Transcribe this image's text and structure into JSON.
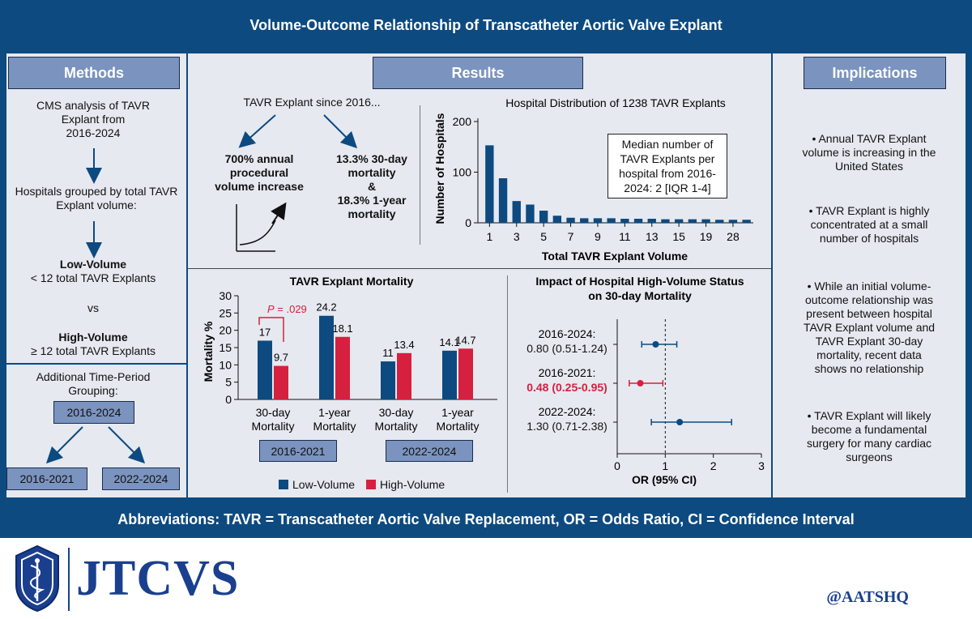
{
  "title": "Volume-Outcome Relationship of Transcatheter Aortic Valve Explant",
  "methods": {
    "heading": "Methods",
    "line1": "CMS analysis of TAVR",
    "line2": "Explant from",
    "line3": "2016-2024",
    "group1": "Hospitals grouped by total TAVR",
    "group2": "Explant volume:",
    "low_title": "Low-Volume",
    "low_desc": "< 12 total TAVR Explants",
    "vs": "vs",
    "high_title": "High-Volume",
    "high_desc": "≥ 12 total TAVR Explants",
    "period1": "Additional Time-Period",
    "period2": "Grouping:",
    "box_all": "2016-2024",
    "box_early": "2016-2021",
    "box_late": "2022-2024"
  },
  "results": {
    "heading": "Results",
    "since": "TAVR Explant since 2016...",
    "increase1": "700% annual",
    "increase2": "procedural",
    "increase3": "volume increase",
    "mort1": "13.3% 30-day",
    "mort2": "mortality",
    "mort3": "&",
    "mort4": "18.3% 1-year",
    "mort5": "mortality"
  },
  "histogram": {
    "title": "Hospital Distribution of 1238 TAVR Explants",
    "median1": "Median number of",
    "median2": "TAVR Explants per",
    "median3": "hospital from 2016-",
    "median4": "2024: 2 [IQR 1-4]"
  },
  "mortality_chart": {
    "title": "TAVR Explant Mortality",
    "pvalue_prefix": "P",
    "pvalue_suffix": " = .029",
    "group_early": "2016-2021",
    "group_late": "2022-2024",
    "legend_low": "Low-Volume",
    "legend_high": "High-Volume"
  },
  "forest_chart": {
    "title1": "Impact of Hospital High-Volume Status",
    "title2": "on 30-day Mortality"
  },
  "implications": {
    "heading": "Implications",
    "items": [
      [
        "Annual TAVR Explant",
        "volume is increasing in the",
        "United States"
      ],
      [
        "TAVR Explant is highly",
        "concentrated at a small",
        "number of hospitals"
      ],
      [
        "While an initial volume-",
        "outcome relationship was",
        "present between hospital",
        "TAVR Explant volume and",
        "TAVR Explant 30-day",
        "mortality, recent data",
        "shows no relationship"
      ],
      [
        "TAVR Explant will likely",
        "become a fundamental",
        "surgery for many cardiac",
        "surgeons"
      ]
    ]
  },
  "abbreviations": "Abbreviations: TAVR = Transcatheter Aortic Valve Replacement, OR = Odds Ratio, CI = Confidence Interval",
  "journal": "JTCVS",
  "handle": "@AATSHQ",
  "colors": {
    "navy": "#0d4a80",
    "panel": "#e6e9f0",
    "box": "#7b93bf",
    "red": "#d6203f",
    "bar": "#0d4a80"
  },
  "chart_data": [
    {
      "type": "bar",
      "title": "Hospital Distribution of 1238 TAVR Explants",
      "xlabel": "Total TAVR Explant Volume",
      "ylabel": "Number of Hospitals",
      "ylim": [
        0,
        200
      ],
      "yticks": [
        0,
        100,
        200
      ],
      "xtick_labels": [
        "1",
        "3",
        "5",
        "7",
        "9",
        "11",
        "13",
        "15",
        "19",
        "28"
      ],
      "categories": [
        "1",
        "2",
        "3",
        "4",
        "5",
        "6",
        "7",
        "8",
        "9",
        "10",
        "11",
        "12",
        "13",
        "14",
        "15",
        "17",
        "19",
        "21",
        "28",
        "30"
      ],
      "values": [
        153,
        88,
        43,
        36,
        24,
        14,
        10,
        9,
        9,
        9,
        8,
        8,
        8,
        7,
        7,
        7,
        7,
        6,
        6,
        6
      ]
    },
    {
      "type": "bar",
      "title": "TAVR Explant Mortality",
      "ylabel": "Mortality %",
      "ylim": [
        0,
        30
      ],
      "yticks": [
        0,
        5,
        10,
        15,
        20,
        25,
        30
      ],
      "categories": [
        "30-day Mortality",
        "1-year Mortality",
        "30-day Mortality",
        "1-year Mortality"
      ],
      "category_lines": [
        [
          "30-day",
          "Mortality"
        ],
        [
          "1-year",
          "Mortality"
        ],
        [
          "30-day",
          "Mortality"
        ],
        [
          "1-year",
          "Mortality"
        ]
      ],
      "period_groups": [
        "2016-2021",
        "2022-2024"
      ],
      "series": [
        {
          "name": "Low-Volume",
          "values": [
            17,
            24.2,
            11,
            14.1
          ],
          "labels": [
            "17",
            "24.2",
            "11",
            "14.1"
          ],
          "color": "#0d4a80"
        },
        {
          "name": "High-Volume",
          "values": [
            9.7,
            18.1,
            13.4,
            14.7
          ],
          "labels": [
            "9.7",
            "18.1",
            "13.4",
            "14.7"
          ],
          "color": "#d6203f"
        }
      ]
    },
    {
      "type": "scatter",
      "subtype": "forest",
      "title": "Impact of Hospital High-Volume Status on 30-day Mortality",
      "xlabel": "OR (95% CI)",
      "xlim": [
        0,
        3
      ],
      "xticks": [
        0,
        1,
        2,
        3
      ],
      "reference_line": 1,
      "rows": [
        {
          "period": "2016-2024:",
          "label": "0.80 (0.51-1.24)",
          "or": 0.8,
          "lo": 0.51,
          "hi": 1.24,
          "color": "#0d4a80",
          "highlight": false
        },
        {
          "period": "2016-2021:",
          "label": "0.48 (0.25-0.95)",
          "or": 0.48,
          "lo": 0.25,
          "hi": 0.95,
          "color": "#d6203f",
          "highlight": true
        },
        {
          "period": "2022-2024:",
          "label": "1.30 (0.71-2.38)",
          "or": 1.3,
          "lo": 0.71,
          "hi": 2.38,
          "color": "#0d4a80",
          "highlight": false
        }
      ]
    }
  ]
}
